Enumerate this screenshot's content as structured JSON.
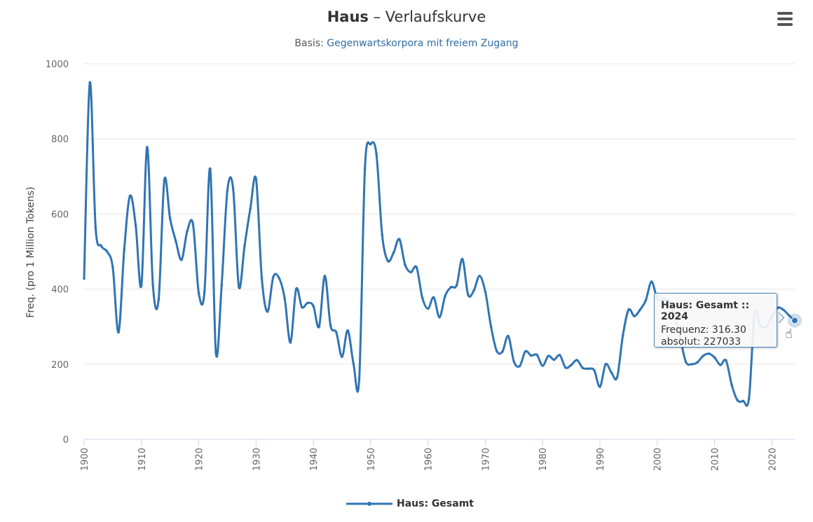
{
  "title": {
    "word": "Haus",
    "dash": " – ",
    "rest": "Verlaufskurve"
  },
  "subtitle": {
    "prefix": "Basis: ",
    "link": "Gegenwartskorpora mit freiem Zugang"
  },
  "menu_icon": "hamburger-menu-icon",
  "tooltip": {
    "header": "Haus: Gesamt :: 2024",
    "freq_label": "Frequenz:",
    "freq_value": "316.30",
    "abs_label": "absolut:",
    "abs_value": "227033"
  },
  "legend": {
    "label": "Haus: Gesamt"
  },
  "colors": {
    "series": "#3075b3",
    "grid": "#e6e6e6",
    "axis": "#ccd6eb",
    "tick_text": "#666666"
  },
  "chart_data": {
    "type": "line",
    "title": "Haus – Verlaufskurve",
    "subtitle": "Basis: Gegenwartskorpora mit freiem Zugang",
    "xlabel": "",
    "ylabel": "Freq. (pro 1 Million Tokens)",
    "xlim": [
      1900,
      2024
    ],
    "ylim": [
      0,
      1000
    ],
    "yticks": [
      0,
      200,
      400,
      600,
      800,
      1000
    ],
    "xticks": [
      1900,
      1910,
      1920,
      1930,
      1940,
      1950,
      1960,
      1970,
      1980,
      1990,
      2000,
      2010,
      2020
    ],
    "grid": true,
    "legend_position": "bottom-center",
    "series": [
      {
        "name": "Haus: Gesamt",
        "x": [
          1900,
          1901,
          1902,
          1903,
          1904,
          1905,
          1906,
          1907,
          1908,
          1909,
          1910,
          1911,
          1912,
          1913,
          1914,
          1915,
          1916,
          1917,
          1918,
          1919,
          1920,
          1921,
          1922,
          1923,
          1924,
          1925,
          1926,
          1927,
          1928,
          1929,
          1930,
          1931,
          1932,
          1933,
          1934,
          1935,
          1936,
          1937,
          1938,
          1939,
          1940,
          1941,
          1942,
          1943,
          1944,
          1945,
          1946,
          1947,
          1948,
          1949,
          1950,
          1951,
          1952,
          1953,
          1954,
          1955,
          1956,
          1957,
          1958,
          1959,
          1960,
          1961,
          1962,
          1963,
          1964,
          1965,
          1966,
          1967,
          1968,
          1969,
          1970,
          1971,
          1972,
          1973,
          1974,
          1975,
          1976,
          1977,
          1978,
          1979,
          1980,
          1981,
          1982,
          1983,
          1984,
          1985,
          1986,
          1987,
          1988,
          1989,
          1990,
          1991,
          1992,
          1993,
          1994,
          1995,
          1996,
          1997,
          1998,
          1999,
          2000,
          2001,
          2002,
          2003,
          2004,
          2005,
          2006,
          2007,
          2008,
          2009,
          2010,
          2011,
          2012,
          2013,
          2014,
          2015,
          2016,
          2017,
          2018,
          2019,
          2020,
          2021,
          2022,
          2023,
          2024
        ],
        "values": [
          428,
          950,
          565,
          515,
          500,
          458,
          285,
          505,
          648,
          570,
          410,
          778,
          412,
          372,
          690,
          588,
          528,
          478,
          555,
          573,
          390,
          392,
          720,
          230,
          410,
          663,
          668,
          406,
          515,
          614,
          693,
          430,
          340,
          432,
          430,
          375,
          258,
          400,
          352,
          363,
          355,
          300,
          435,
          303,
          285,
          220,
          290,
          202,
          160,
          722,
          786,
          760,
          545,
          475,
          497,
          533,
          465,
          445,
          458,
          378,
          348,
          378,
          325,
          382,
          405,
          410,
          480,
          385,
          396,
          435,
          393,
          300,
          235,
          234,
          275,
          207,
          195,
          234,
          223,
          225,
          196,
          222,
          212,
          224,
          191,
          198,
          211,
          190,
          188,
          184,
          140,
          200,
          178,
          165,
          276,
          345,
          328,
          345,
          370,
          420,
          375,
          372,
          368,
          330,
          270,
          206,
          200,
          205,
          222,
          228,
          218,
          198,
          210,
          145,
          104,
          102,
          108,
          335,
          302,
          300,
          325,
          350,
          345,
          330,
          316.3
        ]
      }
    ]
  }
}
